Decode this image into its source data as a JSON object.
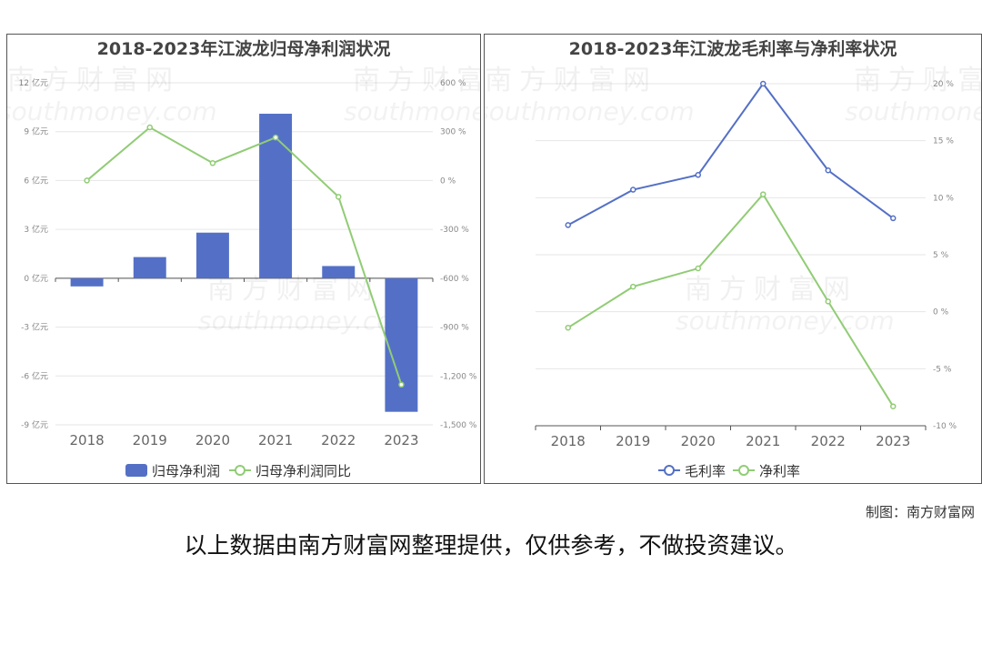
{
  "chart_data": [
    {
      "type": "bar+line",
      "title": "2018-2023年江波龙归母净利润状况",
      "categories": [
        "2018",
        "2019",
        "2020",
        "2021",
        "2022",
        "2023"
      ],
      "series": [
        {
          "name": "归母净利润",
          "type": "bar",
          "axis": "left",
          "unit": "亿元",
          "color": "#5470c6",
          "values": [
            -0.5,
            1.3,
            2.8,
            10.1,
            0.75,
            -8.2
          ]
        },
        {
          "name": "归母净利润同比",
          "type": "line",
          "axis": "right",
          "unit": "%",
          "color": "#91cc75",
          "values": [
            0,
            326,
            107,
            264,
            -100,
            -1253
          ]
        }
      ],
      "y_left": {
        "range": [
          -9,
          12
        ],
        "ticks": [
          "-9 亿元",
          "-6 亿元",
          "-3 亿元",
          "0 亿元",
          "3 亿元",
          "6 亿元",
          "9 亿元",
          "12 亿元"
        ]
      },
      "y_right": {
        "range": [
          -1500,
          600
        ],
        "ticks": [
          "-1,500 %",
          "-1,200 %",
          "-900 %",
          "-600 %",
          "-300 %",
          "0 %",
          "300 %",
          "600 %"
        ]
      },
      "grid": true,
      "legend": "bottom"
    },
    {
      "type": "line",
      "title": "2018-2023年江波龙毛利率与净利率状况",
      "categories": [
        "2018",
        "2019",
        "2020",
        "2021",
        "2022",
        "2023"
      ],
      "series": [
        {
          "name": "毛利率",
          "color": "#5470c6",
          "values": [
            7.6,
            10.7,
            12.0,
            20.0,
            12.4,
            8.2
          ]
        },
        {
          "name": "净利率",
          "color": "#91cc75",
          "values": [
            -1.4,
            2.2,
            3.8,
            10.3,
            0.9,
            -8.3
          ]
        }
      ],
      "y_right": {
        "range": [
          -10,
          20
        ],
        "ticks": [
          "-10 %",
          "-5 %",
          "0 %",
          "5 %",
          "10 %",
          "15 %",
          "20 %"
        ]
      },
      "grid": true,
      "legend": "bottom"
    }
  ],
  "watermark": "南方财富网 southmoney.com",
  "footer": {
    "credit": "制图：南方财富网",
    "note": "以上数据由南方财富网整理提供，仅供参考，不做投资建议。"
  }
}
